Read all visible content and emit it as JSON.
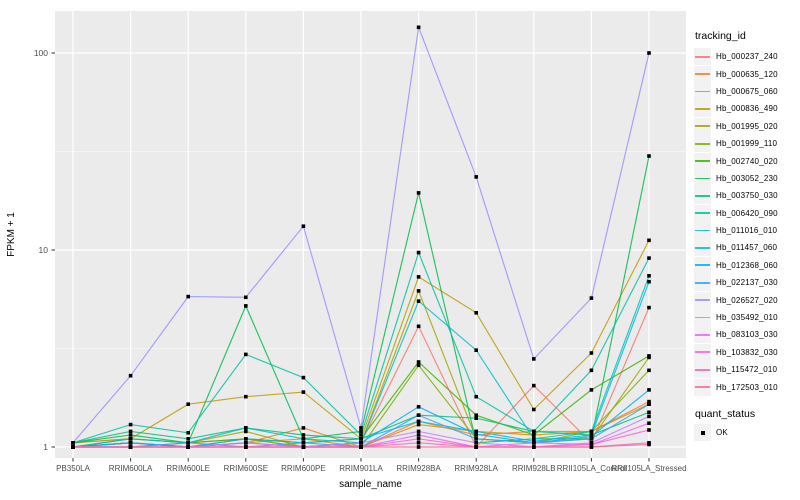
{
  "chart_data": {
    "type": "line",
    "title": "",
    "xlabel": "sample_name",
    "ylabel": "FPKM + 1",
    "y_scale": "log10",
    "y_ticks": [
      1,
      10,
      100
    ],
    "y_minor_ticks": [
      3.162,
      31.62
    ],
    "ylim": [
      0.9,
      160
    ],
    "grid": "major-white-on-gray, minor-white-thin",
    "panel_background": "#EBEBEB",
    "gridline_color": "#FFFFFF",
    "tick_label_color": "#4D4D4D",
    "point_marker": "black-square",
    "legend_position": "right",
    "legend_title": "tracking_id",
    "quant_legend": {
      "title": "quant_status",
      "items": [
        {
          "label": "OK",
          "marker": "black-square"
        }
      ]
    },
    "categories": [
      "PB350LA",
      "RRIM600LA",
      "RRIM600LE",
      "RRIM600SE",
      "RRIM600PE",
      "RRIM901LA",
      "RRIM928BA",
      "RRIM928LA",
      "RRIM928LB",
      "RRII105LA_Control",
      "RRII105LA_Stressed"
    ],
    "series": [
      {
        "name": "Hb_000237_240",
        "color": "#F8766D",
        "values": [
          1.05,
          1.1,
          1.05,
          1.1,
          1.0,
          1.05,
          4.1,
          1.0,
          2.05,
          1.05,
          5.1
        ]
      },
      {
        "name": "Hb_000635_120",
        "color": "#EA8331",
        "values": [
          1.0,
          1.05,
          1.0,
          1.05,
          1.25,
          1.0,
          1.35,
          1.15,
          1.2,
          1.2,
          1.7
        ]
      },
      {
        "name": "Hb_000675_060",
        "color": "#D89000",
        "values": [
          1.0,
          1.05,
          1.0,
          1.05,
          1.1,
          1.0,
          1.3,
          1.2,
          1.15,
          1.2,
          1.65
        ]
      },
      {
        "name": "Hb_000836_490",
        "color": "#C09B00",
        "values": [
          1.05,
          1.1,
          1.65,
          1.8,
          1.9,
          1.1,
          7.3,
          4.8,
          1.55,
          3.0,
          11.2
        ]
      },
      {
        "name": "Hb_001995_020",
        "color": "#A3A500",
        "values": [
          1.0,
          1.0,
          1.05,
          1.2,
          1.0,
          1.05,
          6.2,
          1.1,
          1.05,
          1.1,
          2.85
        ]
      },
      {
        "name": "Hb_001999_110",
        "color": "#7CAE00",
        "values": [
          1.0,
          1.05,
          1.0,
          1.1,
          1.0,
          1.0,
          2.6,
          1.1,
          1.05,
          1.2,
          2.45
        ]
      },
      {
        "name": "Hb_002740_020",
        "color": "#39B600",
        "values": [
          1.0,
          1.1,
          1.05,
          1.1,
          1.05,
          1.1,
          2.7,
          1.45,
          1.15,
          1.95,
          2.9
        ]
      },
      {
        "name": "Hb_003052_230",
        "color": "#00BB4E",
        "values": [
          1.05,
          1.15,
          1.05,
          5.2,
          1.1,
          1.2,
          19.5,
          1.05,
          1.1,
          1.1,
          30.0
        ]
      },
      {
        "name": "Hb_003750_030",
        "color": "#00BF7D",
        "values": [
          1.05,
          1.2,
          1.1,
          1.25,
          1.15,
          1.1,
          1.45,
          1.4,
          1.2,
          1.15,
          1.5
        ]
      },
      {
        "name": "Hb_006420_090",
        "color": "#00C1A3",
        "values": [
          1.05,
          1.3,
          1.18,
          2.95,
          2.25,
          1.15,
          9.7,
          1.8,
          1.2,
          2.45,
          9.1
        ]
      },
      {
        "name": "Hb_011016_010",
        "color": "#00BFC4",
        "values": [
          1.0,
          1.1,
          1.05,
          1.25,
          1.1,
          1.05,
          5.5,
          3.1,
          1.1,
          1.2,
          7.4
        ]
      },
      {
        "name": "Hb_011457_060",
        "color": "#00BAE0",
        "values": [
          1.0,
          1.05,
          1.0,
          1.1,
          1.05,
          1.1,
          1.35,
          1.2,
          1.07,
          1.15,
          6.9
        ]
      },
      {
        "name": "Hb_012368_060",
        "color": "#00B0F6",
        "values": [
          1.0,
          1.05,
          1.0,
          1.05,
          1.0,
          1.05,
          1.6,
          1.16,
          1.05,
          1.13,
          1.95
        ]
      },
      {
        "name": "Hb_022137_030",
        "color": "#35A2FF",
        "values": [
          1.0,
          1.0,
          1.05,
          1.0,
          1.05,
          1.0,
          1.45,
          1.1,
          1.05,
          1.1,
          1.65
        ]
      },
      {
        "name": "Hb_026527_020",
        "color": "#9590FF",
        "values": [
          1.05,
          2.3,
          5.8,
          5.75,
          13.2,
          1.25,
          135.0,
          23.5,
          2.8,
          5.7,
          100.0
        ]
      },
      {
        "name": "Hb_035492_010",
        "color": "#C77CFF",
        "values": [
          1.0,
          1.0,
          1.0,
          1.05,
          1.0,
          1.05,
          1.2,
          1.05,
          1.0,
          1.05,
          1.43
        ]
      },
      {
        "name": "Hb_083103_030",
        "color": "#E76BF3",
        "values": [
          1.0,
          1.0,
          1.0,
          1.0,
          1.0,
          1.0,
          1.15,
          1.0,
          1.05,
          1.03,
          1.32
        ]
      },
      {
        "name": "Hb_103832_030",
        "color": "#FA62DB",
        "values": [
          1.0,
          1.0,
          1.0,
          1.0,
          1.0,
          1.0,
          1.1,
          1.0,
          1.0,
          1.03,
          1.22
        ]
      },
      {
        "name": "Hb_115472_010",
        "color": "#FF62BC",
        "values": [
          1.0,
          1.0,
          1.0,
          1.0,
          1.0,
          1.0,
          1.05,
          1.0,
          1.0,
          1.0,
          1.05
        ]
      },
      {
        "name": "Hb_172503_010",
        "color": "#FF6A98",
        "values": [
          1.0,
          1.0,
          1.0,
          1.0,
          1.0,
          1.0,
          1.0,
          1.0,
          1.0,
          1.0,
          1.03
        ]
      }
    ]
  }
}
